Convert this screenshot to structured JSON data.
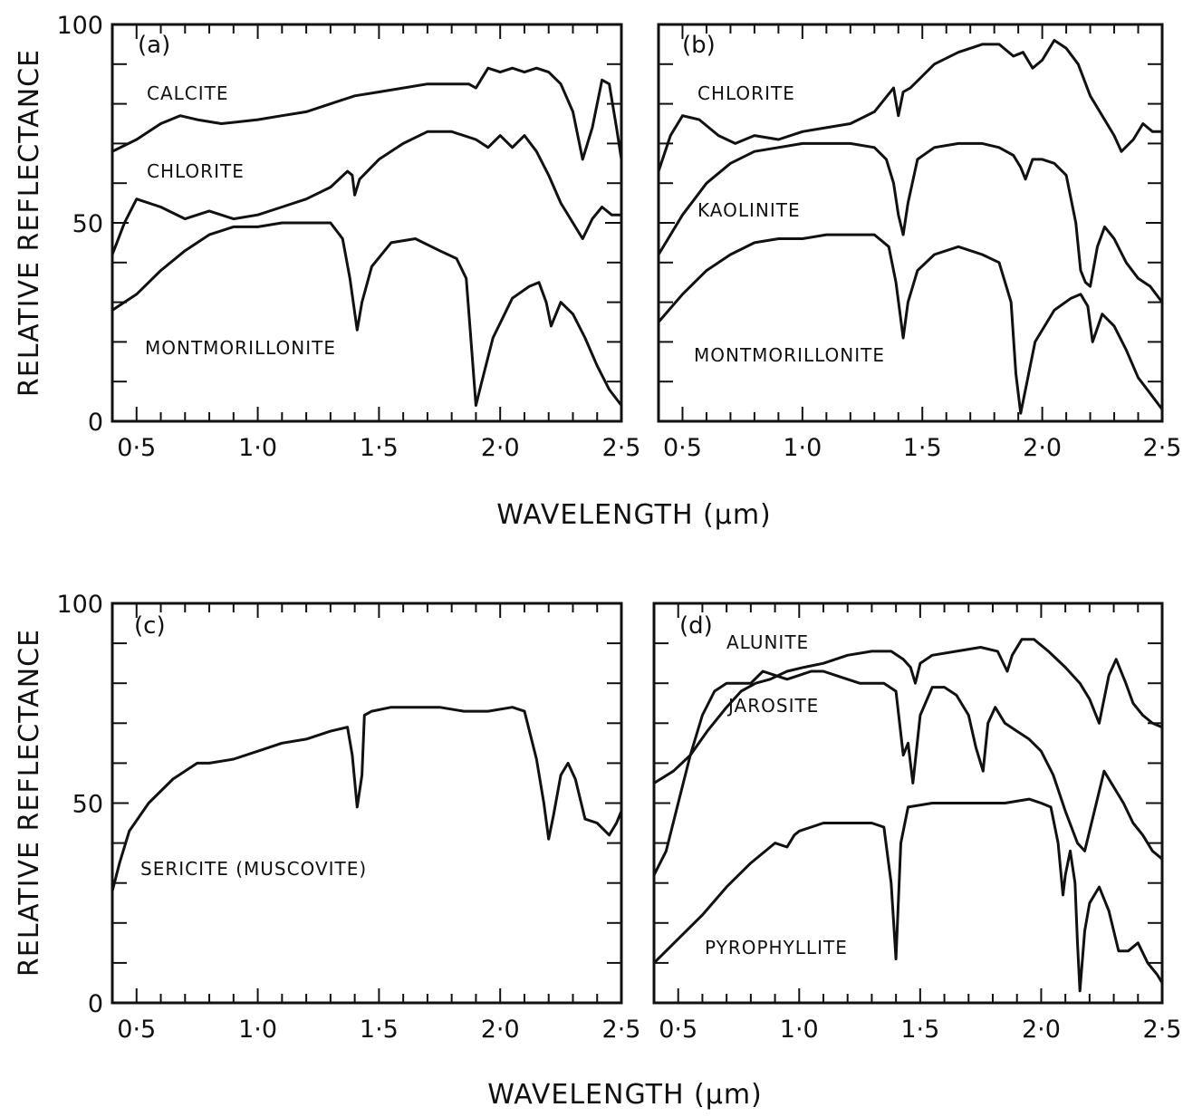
{
  "chart_data": [
    {
      "type": "line",
      "panel_label": "(a)",
      "xlabel": "WAVELENGTH (μm)",
      "ylabel": "RELATIVE REFLECTANCE",
      "xlim": [
        0.4,
        2.5
      ],
      "ylim": [
        0,
        100
      ],
      "x_tick_values": [
        0.5,
        1.0,
        1.5,
        2.0,
        2.5
      ],
      "x_tick_labels": [
        "0·5",
        "1·0",
        "1·5",
        "2·0",
        "2·5"
      ],
      "y_tick_values": [
        0,
        50,
        100
      ],
      "y_tick_labels": [
        "0",
        "50",
        "100"
      ],
      "grid": false,
      "series": [
        {
          "name": "CALCITE",
          "x": [
            0.4,
            0.5,
            0.6,
            0.68,
            0.75,
            0.85,
            1.0,
            1.1,
            1.2,
            1.3,
            1.4,
            1.5,
            1.6,
            1.7,
            1.8,
            1.87,
            1.9,
            1.95,
            2.0,
            2.05,
            2.1,
            2.15,
            2.2,
            2.25,
            2.3,
            2.34,
            2.38,
            2.42,
            2.45,
            2.48,
            2.5
          ],
          "y": [
            68,
            71,
            75,
            77,
            76,
            75,
            76,
            77,
            78,
            80,
            82,
            83,
            84,
            85,
            85,
            85,
            84,
            89,
            88,
            89,
            88,
            89,
            88,
            85,
            78,
            66,
            74,
            86,
            85,
            74,
            66
          ]
        },
        {
          "name": "CHLORITE",
          "x": [
            0.4,
            0.45,
            0.5,
            0.6,
            0.7,
            0.8,
            0.9,
            1.0,
            1.1,
            1.2,
            1.3,
            1.37,
            1.39,
            1.4,
            1.42,
            1.5,
            1.6,
            1.7,
            1.8,
            1.9,
            1.95,
            2.0,
            2.05,
            2.1,
            2.15,
            2.2,
            2.25,
            2.3,
            2.34,
            2.38,
            2.42,
            2.46,
            2.5
          ],
          "y": [
            42,
            50,
            56,
            54,
            51,
            53,
            51,
            52,
            54,
            56,
            59,
            63,
            62,
            57,
            61,
            66,
            70,
            73,
            73,
            71,
            69,
            72,
            69,
            72,
            68,
            62,
            55,
            50,
            46,
            51,
            54,
            52,
            52
          ]
        },
        {
          "name": "MONTMORILLONITE",
          "x": [
            0.4,
            0.5,
            0.6,
            0.7,
            0.8,
            0.9,
            1.0,
            1.1,
            1.2,
            1.3,
            1.35,
            1.38,
            1.41,
            1.43,
            1.47,
            1.55,
            1.65,
            1.75,
            1.82,
            1.86,
            1.88,
            1.9,
            1.92,
            1.97,
            2.05,
            2.12,
            2.16,
            2.19,
            2.21,
            2.25,
            2.3,
            2.35,
            2.4,
            2.45,
            2.5
          ],
          "y": [
            28,
            32,
            38,
            43,
            47,
            49,
            49,
            50,
            50,
            50,
            46,
            36,
            23,
            30,
            39,
            45,
            46,
            43,
            41,
            36,
            20,
            4,
            9,
            21,
            31,
            34,
            35,
            30,
            24,
            30,
            27,
            21,
            14,
            8,
            4
          ]
        }
      ]
    },
    {
      "type": "line",
      "panel_label": "(b)",
      "xlabel": "WAVELENGTH (μm)",
      "ylabel": "",
      "xlim": [
        0.4,
        2.5
      ],
      "ylim": [
        0,
        100
      ],
      "x_tick_values": [
        0.5,
        1.0,
        1.5,
        2.0,
        2.5
      ],
      "x_tick_labels": [
        "0·5",
        "1·0",
        "1·5",
        "2·0",
        "2·5"
      ],
      "y_tick_values": [],
      "y_tick_labels": [],
      "grid": false,
      "series": [
        {
          "name": "CHLORITE",
          "x": [
            0.4,
            0.45,
            0.5,
            0.57,
            0.65,
            0.72,
            0.8,
            0.9,
            1.0,
            1.1,
            1.2,
            1.3,
            1.38,
            1.4,
            1.42,
            1.45,
            1.55,
            1.65,
            1.75,
            1.82,
            1.88,
            1.92,
            1.96,
            2.0,
            2.05,
            2.1,
            2.15,
            2.2,
            2.25,
            2.3,
            2.33,
            2.38,
            2.42,
            2.46,
            2.5
          ],
          "y": [
            63,
            72,
            77,
            76,
            72,
            70,
            72,
            71,
            73,
            74,
            75,
            78,
            84,
            77,
            83,
            84,
            90,
            93,
            95,
            95,
            92,
            93,
            89,
            91,
            96,
            94,
            90,
            82,
            77,
            72,
            68,
            71,
            75,
            73,
            73
          ]
        },
        {
          "name": "KAOLINITE",
          "x": [
            0.4,
            0.5,
            0.6,
            0.7,
            0.8,
            0.9,
            1.0,
            1.1,
            1.2,
            1.3,
            1.35,
            1.38,
            1.4,
            1.42,
            1.44,
            1.48,
            1.55,
            1.65,
            1.75,
            1.82,
            1.88,
            1.91,
            1.93,
            1.96,
            2.0,
            2.05,
            2.1,
            2.14,
            2.16,
            2.18,
            2.2,
            2.23,
            2.26,
            2.3,
            2.35,
            2.4,
            2.45,
            2.5
          ],
          "y": [
            42,
            52,
            60,
            65,
            68,
            69,
            70,
            70,
            70,
            69,
            66,
            60,
            52,
            47,
            55,
            66,
            69,
            70,
            70,
            69,
            67,
            64,
            61,
            66,
            66,
            65,
            62,
            50,
            38,
            35,
            34,
            44,
            49,
            46,
            40,
            36,
            34,
            30
          ]
        },
        {
          "name": "MONTMORILLONITE",
          "x": [
            0.4,
            0.5,
            0.6,
            0.7,
            0.8,
            0.9,
            1.0,
            1.1,
            1.2,
            1.3,
            1.36,
            1.39,
            1.42,
            1.44,
            1.48,
            1.55,
            1.65,
            1.75,
            1.82,
            1.87,
            1.89,
            1.91,
            1.93,
            1.97,
            2.05,
            2.12,
            2.16,
            2.19,
            2.21,
            2.25,
            2.3,
            2.35,
            2.4,
            2.45,
            2.5
          ],
          "y": [
            25,
            32,
            38,
            42,
            45,
            46,
            46,
            47,
            47,
            47,
            44,
            35,
            21,
            30,
            38,
            42,
            44,
            42,
            40,
            30,
            12,
            2,
            8,
            20,
            28,
            31,
            32,
            29,
            20,
            27,
            24,
            18,
            11,
            7,
            3
          ]
        }
      ]
    },
    {
      "type": "line",
      "panel_label": "(c)",
      "xlabel": "WAVELENGTH (μm)",
      "ylabel": "RELATIVE REFLECTANCE",
      "xlim": [
        0.4,
        2.5
      ],
      "ylim": [
        0,
        100
      ],
      "x_tick_values": [
        0.5,
        1.0,
        1.5,
        2.0,
        2.5
      ],
      "x_tick_labels": [
        "0·5",
        "1·0",
        "1·5",
        "2·0",
        "2·5"
      ],
      "y_tick_values": [
        0,
        50,
        100
      ],
      "y_tick_labels": [
        "0",
        "50",
        "100"
      ],
      "grid": false,
      "series": [
        {
          "name": "SERICITE (MUSCOVITE)",
          "x": [
            0.4,
            0.43,
            0.47,
            0.55,
            0.65,
            0.75,
            0.8,
            0.9,
            1.0,
            1.1,
            1.2,
            1.3,
            1.37,
            1.39,
            1.41,
            1.43,
            1.44,
            1.47,
            1.55,
            1.65,
            1.75,
            1.85,
            1.95,
            2.05,
            2.1,
            2.15,
            2.18,
            2.2,
            2.22,
            2.25,
            2.28,
            2.31,
            2.35,
            2.4,
            2.45,
            2.48,
            2.5
          ],
          "y": [
            28,
            35,
            43,
            50,
            56,
            60,
            60,
            61,
            63,
            65,
            66,
            68,
            69,
            62,
            49,
            57,
            72,
            73,
            74,
            74,
            74,
            73,
            73,
            74,
            73,
            61,
            50,
            41,
            47,
            57,
            60,
            56,
            46,
            45,
            42,
            45,
            48
          ]
        }
      ]
    },
    {
      "type": "line",
      "panel_label": "(d)",
      "xlabel": "WAVELENGTH (μm)",
      "ylabel": "",
      "xlim": [
        0.4,
        2.5
      ],
      "ylim": [
        0,
        100
      ],
      "x_tick_values": [
        0.5,
        1.0,
        1.5,
        2.0,
        2.5
      ],
      "x_tick_labels": [
        "0·5",
        "1·0",
        "1·5",
        "2·0",
        "2·5"
      ],
      "y_tick_values": [],
      "y_tick_labels": [],
      "grid": false,
      "series": [
        {
          "name": "ALUNITE",
          "x": [
            0.4,
            0.48,
            0.55,
            0.62,
            0.7,
            0.76,
            0.82,
            0.88,
            0.95,
            1.02,
            1.1,
            1.2,
            1.3,
            1.38,
            1.43,
            1.46,
            1.48,
            1.5,
            1.55,
            1.65,
            1.75,
            1.82,
            1.86,
            1.88,
            1.92,
            1.97,
            2.03,
            2.1,
            2.16,
            2.2,
            2.24,
            2.28,
            2.31,
            2.35,
            2.38,
            2.42,
            2.46,
            2.5
          ],
          "y": [
            55,
            58,
            62,
            68,
            74,
            78,
            80,
            81,
            83,
            84,
            85,
            87,
            88,
            88,
            86,
            84,
            80,
            85,
            87,
            88,
            89,
            88,
            83,
            87,
            91,
            91,
            88,
            84,
            80,
            76,
            70,
            82,
            86,
            80,
            75,
            72,
            70,
            69
          ]
        },
        {
          "name": "JAROSITE",
          "x": [
            0.4,
            0.45,
            0.5,
            0.55,
            0.6,
            0.65,
            0.7,
            0.75,
            0.8,
            0.85,
            0.9,
            0.95,
            1.0,
            1.05,
            1.1,
            1.15,
            1.2,
            1.25,
            1.3,
            1.35,
            1.4,
            1.43,
            1.45,
            1.47,
            1.5,
            1.55,
            1.6,
            1.65,
            1.7,
            1.73,
            1.76,
            1.78,
            1.81,
            1.85,
            1.9,
            1.95,
            2.0,
            2.05,
            2.1,
            2.15,
            2.18,
            2.22,
            2.26,
            2.3,
            2.34,
            2.38,
            2.42,
            2.46,
            2.5
          ],
          "y": [
            32,
            38,
            50,
            62,
            72,
            78,
            80,
            80,
            80,
            83,
            82,
            81,
            82,
            83,
            83,
            82,
            81,
            80,
            80,
            80,
            78,
            62,
            65,
            55,
            72,
            79,
            79,
            77,
            72,
            64,
            58,
            70,
            74,
            70,
            68,
            66,
            63,
            57,
            48,
            40,
            38,
            48,
            58,
            54,
            50,
            45,
            42,
            38,
            36
          ]
        },
        {
          "name": "PYROPHYLLITE",
          "x": [
            0.4,
            0.5,
            0.6,
            0.7,
            0.8,
            0.9,
            0.95,
            0.98,
            1.0,
            1.1,
            1.2,
            1.3,
            1.35,
            1.38,
            1.4,
            1.42,
            1.45,
            1.55,
            1.65,
            1.75,
            1.85,
            1.95,
            2.0,
            2.04,
            2.07,
            2.09,
            2.1,
            2.12,
            2.14,
            2.15,
            2.16,
            2.18,
            2.2,
            2.24,
            2.28,
            2.32,
            2.36,
            2.4,
            2.44,
            2.48,
            2.5
          ],
          "y": [
            10,
            16,
            22,
            29,
            35,
            40,
            39,
            42,
            43,
            45,
            45,
            45,
            44,
            30,
            11,
            40,
            49,
            50,
            50,
            50,
            50,
            51,
            50,
            49,
            40,
            27,
            32,
            38,
            30,
            15,
            3,
            18,
            25,
            29,
            23,
            13,
            13,
            15,
            10,
            7,
            5
          ]
        }
      ]
    }
  ]
}
